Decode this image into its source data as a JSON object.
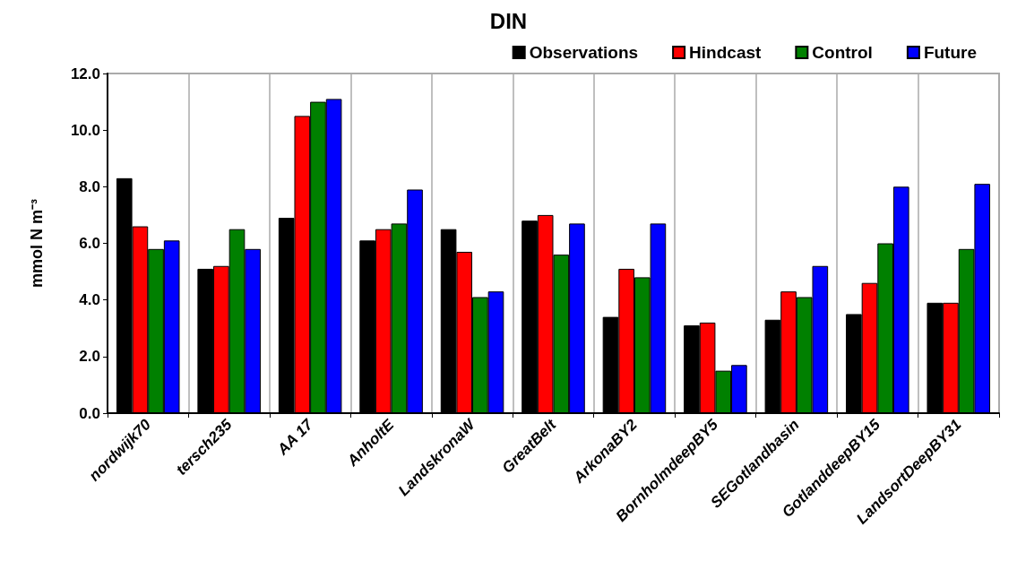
{
  "chart_data": {
    "type": "bar",
    "title": "DIN",
    "ylabel": "mmol N m⁻³",
    "categories": [
      "nordwijk70",
      "tersch235",
      "AA 17",
      "AnholtE",
      "LandskronaW",
      "GreatBelt",
      "ArkonaBY2",
      "BornholmdeepBY5",
      "SEGotlandbasin",
      "GotlanddeepBY15",
      "LandsortDeepBY31"
    ],
    "series": [
      {
        "name": "Observations",
        "color": "#000000",
        "values": [
          8.3,
          5.1,
          6.9,
          6.1,
          6.5,
          6.8,
          3.4,
          3.1,
          3.3,
          3.5,
          3.9
        ]
      },
      {
        "name": "Hindcast",
        "color": "#ff0000",
        "values": [
          6.6,
          5.2,
          10.5,
          6.5,
          5.7,
          7.0,
          5.1,
          3.2,
          4.3,
          4.6,
          3.9
        ]
      },
      {
        "name": "Control",
        "color": "#008000",
        "values": [
          5.8,
          6.5,
          11.0,
          6.7,
          4.1,
          5.6,
          4.8,
          1.5,
          4.1,
          6.0,
          5.8
        ]
      },
      {
        "name": "Future",
        "color": "#0000ff",
        "values": [
          6.1,
          5.8,
          11.1,
          7.9,
          4.3,
          6.7,
          6.7,
          1.7,
          5.2,
          8.0,
          8.1
        ]
      }
    ],
    "ylim": [
      0,
      12
    ],
    "yticks": [
      {
        "value": 0,
        "label": "0.0"
      },
      {
        "value": 2,
        "label": "2.0"
      },
      {
        "value": 4,
        "label": "4.0"
      },
      {
        "value": 6,
        "label": "6.0"
      },
      {
        "value": 8,
        "label": "8.0"
      },
      {
        "value": 10,
        "label": "10.0"
      },
      {
        "value": 12,
        "label": "12.0"
      }
    ],
    "grid": "x",
    "legend": "top right"
  }
}
